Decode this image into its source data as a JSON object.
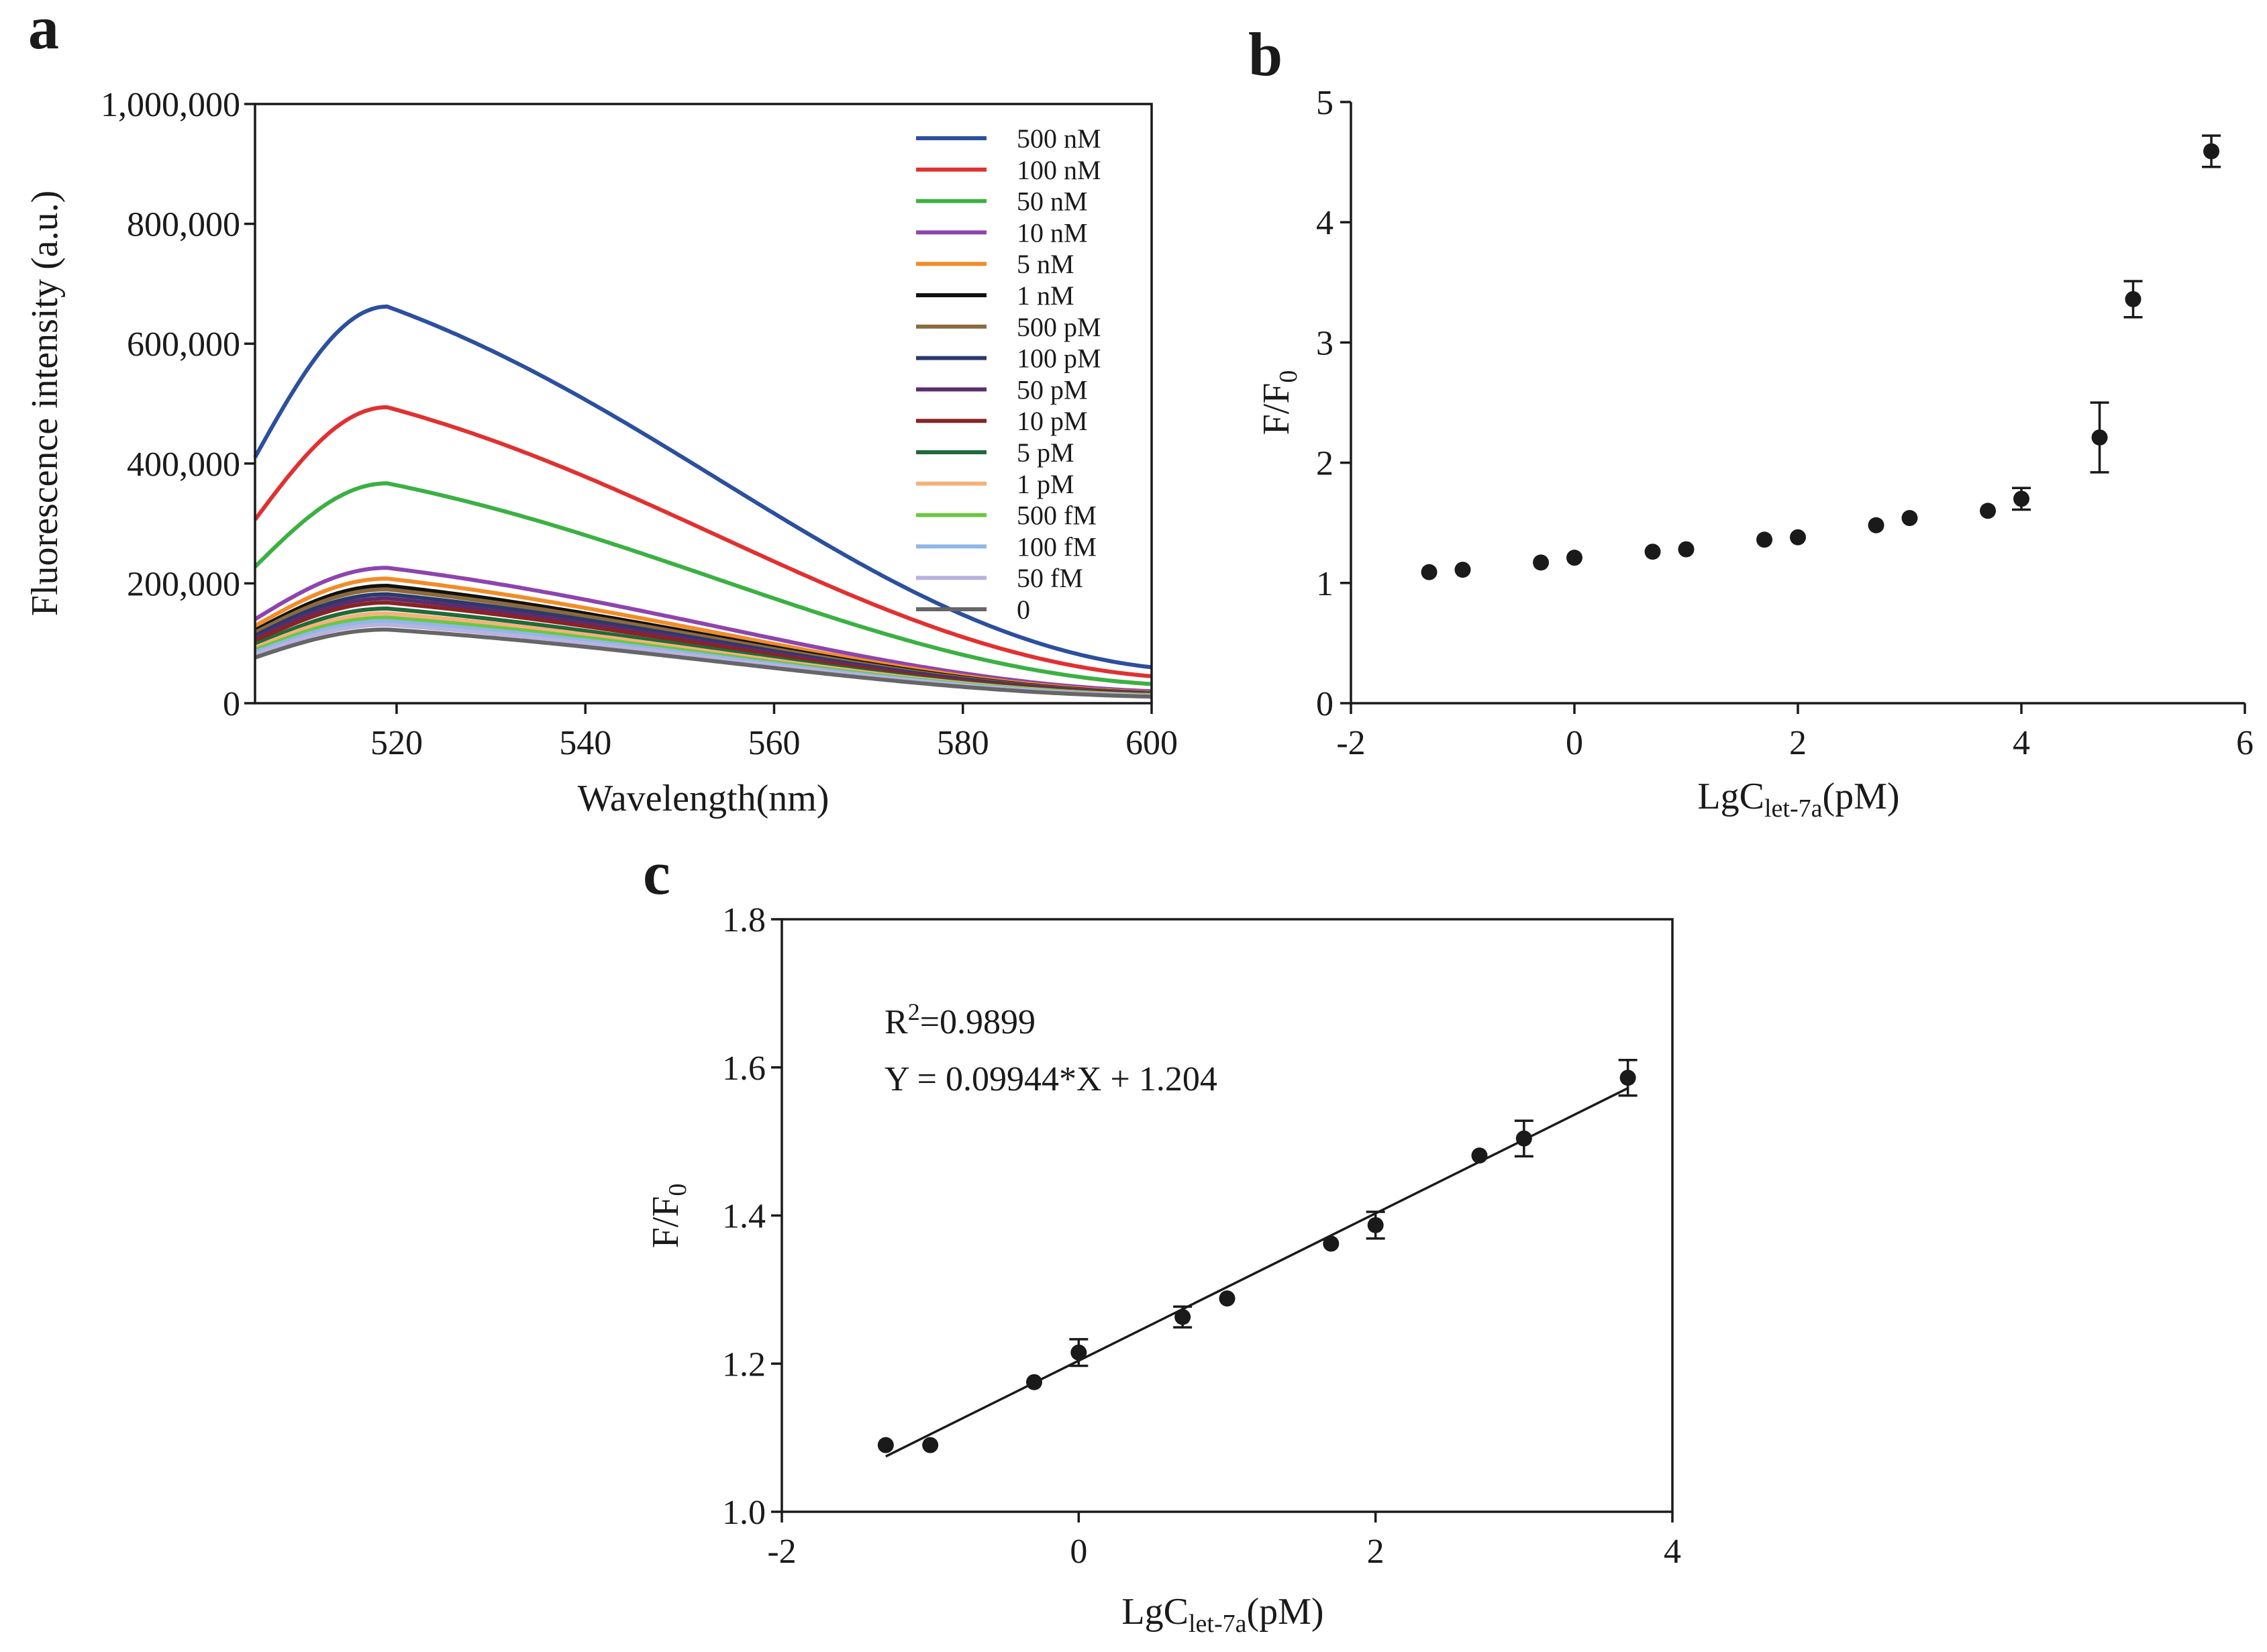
{
  "panels": {
    "a": {
      "letter": "a"
    },
    "b": {
      "letter": "b"
    },
    "c": {
      "letter": "c"
    }
  },
  "chart_data": [
    {
      "id": "a",
      "type": "line",
      "title": "",
      "xlabel": "Wavelength(nm)",
      "ylabel": "Fluorescence  intensity (a.u.)",
      "xlim": [
        505,
        600
      ],
      "ylim": [
        0,
        1000000
      ],
      "xticks": [
        520,
        540,
        560,
        580,
        600
      ],
      "xtick_labels": [
        "520",
        "540",
        "560",
        "580",
        "600"
      ],
      "yticks": [
        0,
        200000,
        400000,
        600000,
        800000,
        1000000
      ],
      "ytick_labels": [
        "0",
        "200,000",
        "400,000",
        "600,000",
        "800,000",
        "1,000,000"
      ],
      "legend_position": "top-right",
      "peak_wavelength": 519,
      "series": [
        {
          "name": "500 nM",
          "color": "#2c4f9e",
          "peak": 662000,
          "end": 60000
        },
        {
          "name": "100 nM",
          "color": "#e03131",
          "peak": 494000,
          "end": 45000
        },
        {
          "name": "50 nM",
          "color": "#3cb043",
          "peak": 367000,
          "end": 32000
        },
        {
          "name": "10 nM",
          "color": "#8e44ad",
          "peak": 226000,
          "end": 20000
        },
        {
          "name": "5 nM",
          "color": "#f28c28",
          "peak": 208000,
          "end": 18000
        },
        {
          "name": "1 nM",
          "color": "#111111",
          "peak": 196000,
          "end": 17000
        },
        {
          "name": "500 pM",
          "color": "#8b6a3e",
          "peak": 190000,
          "end": 16500
        },
        {
          "name": "100 pM",
          "color": "#2b3a6b",
          "peak": 182000,
          "end": 16000
        },
        {
          "name": "50 pM",
          "color": "#5b2c6f",
          "peak": 175000,
          "end": 15500
        },
        {
          "name": "10 pM",
          "color": "#8b2323",
          "peak": 168000,
          "end": 15000
        },
        {
          "name": "5 pM",
          "color": "#1e6b3a",
          "peak": 158000,
          "end": 14000
        },
        {
          "name": "1 pM",
          "color": "#f4b27a",
          "peak": 150000,
          "end": 13500
        },
        {
          "name": "500 fM",
          "color": "#6cc644",
          "peak": 143000,
          "end": 13000
        },
        {
          "name": "100 fM",
          "color": "#8fb8e8",
          "peak": 137000,
          "end": 12500
        },
        {
          "name": "50 fM",
          "color": "#b9b2df",
          "peak": 131000,
          "end": 12000
        },
        {
          "name": "0",
          "color": "#666666",
          "peak": 123000,
          "end": 11000
        }
      ]
    },
    {
      "id": "b",
      "type": "scatter",
      "title": "",
      "xlabel_main": "LgC",
      "xlabel_sub": "let-7a",
      "xlabel_tail": "(pM)",
      "ylabel_main": "F/F",
      "ylabel_sub": "0",
      "xlim": [
        -2,
        6
      ],
      "ylim": [
        0,
        5
      ],
      "xticks": [
        -2,
        0,
        2,
        4,
        6
      ],
      "xtick_labels": [
        "-2",
        "0",
        "2",
        "4",
        "6"
      ],
      "yticks": [
        0,
        1,
        2,
        3,
        4,
        5
      ],
      "ytick_labels": [
        "0",
        "1",
        "2",
        "3",
        "4",
        "5"
      ],
      "points": [
        {
          "x": -1.3,
          "y": 1.09,
          "err": 0.0
        },
        {
          "x": -1.0,
          "y": 1.11,
          "err": 0.0
        },
        {
          "x": -0.3,
          "y": 1.17,
          "err": 0.0
        },
        {
          "x": 0.0,
          "y": 1.21,
          "err": 0.0
        },
        {
          "x": 0.7,
          "y": 1.26,
          "err": 0.0
        },
        {
          "x": 1.0,
          "y": 1.28,
          "err": 0.0
        },
        {
          "x": 1.7,
          "y": 1.36,
          "err": 0.0
        },
        {
          "x": 2.0,
          "y": 1.38,
          "err": 0.0
        },
        {
          "x": 2.7,
          "y": 1.48,
          "err": 0.0
        },
        {
          "x": 3.0,
          "y": 1.54,
          "err": 0.0
        },
        {
          "x": 3.7,
          "y": 1.6,
          "err": 0.0
        },
        {
          "x": 4.0,
          "y": 1.7,
          "err": 0.09
        },
        {
          "x": 4.7,
          "y": 2.21,
          "err": 0.29
        },
        {
          "x": 5.0,
          "y": 3.36,
          "err": 0.15
        },
        {
          "x": 5.7,
          "y": 4.59,
          "err": 0.13
        }
      ]
    },
    {
      "id": "c",
      "type": "scatter",
      "title": "",
      "xlabel_main": "LgC",
      "xlabel_sub": "let-7a",
      "xlabel_tail": "(pM)",
      "ylabel_main": "F/F",
      "ylabel_sub": "0",
      "xlim": [
        -2,
        4
      ],
      "ylim": [
        1.0,
        1.8
      ],
      "xticks": [
        -2,
        0,
        2,
        4
      ],
      "xtick_labels": [
        "-2",
        "0",
        "2",
        "4"
      ],
      "yticks": [
        1.0,
        1.2,
        1.4,
        1.6,
        1.8
      ],
      "ytick_labels": [
        "1.0",
        "1.2",
        "1.4",
        "1.6",
        "1.8"
      ],
      "annotation_r2_main": "R",
      "annotation_r2_sup": "2",
      "annotation_r2_value": "=0.9899",
      "annotation_equation": "Y = 0.09944*X + 1.204",
      "fit": {
        "slope": 0.09944,
        "intercept": 1.204,
        "x_range": [
          -1.3,
          3.7
        ]
      },
      "points": [
        {
          "x": -1.3,
          "y": 1.09,
          "err": 0.0
        },
        {
          "x": -1.0,
          "y": 1.09,
          "err": 0.0
        },
        {
          "x": -0.3,
          "y": 1.175,
          "err": 0.0
        },
        {
          "x": 0.0,
          "y": 1.215,
          "err": 0.018
        },
        {
          "x": 0.7,
          "y": 1.263,
          "err": 0.014
        },
        {
          "x": 1.0,
          "y": 1.288,
          "err": 0.0
        },
        {
          "x": 1.7,
          "y": 1.362,
          "err": 0.0
        },
        {
          "x": 2.0,
          "y": 1.387,
          "err": 0.018
        },
        {
          "x": 2.7,
          "y": 1.481,
          "err": 0.0
        },
        {
          "x": 3.0,
          "y": 1.504,
          "err": 0.024
        },
        {
          "x": 3.7,
          "y": 1.586,
          "err": 0.024
        }
      ]
    }
  ]
}
